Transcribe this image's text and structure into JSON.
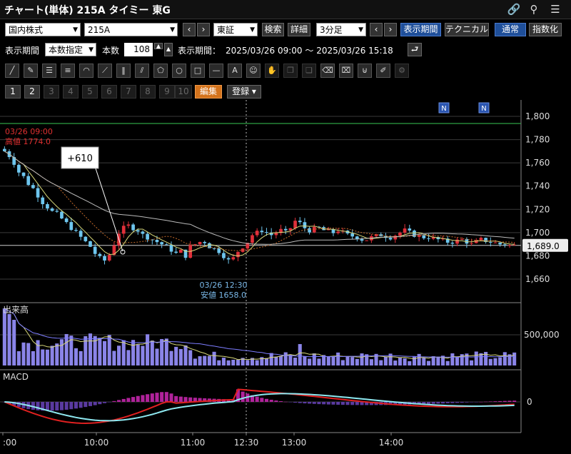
{
  "window": {
    "title": "チャート(単体) 215A タイミー 東G"
  },
  "icons": {
    "link": "link-icon",
    "search": "search-icon",
    "menu": "menu-icon"
  },
  "toolbar1": {
    "market_type": "国内株式",
    "code": "215A",
    "exchange": "東証",
    "search_label": "検索",
    "detail_label": "詳細",
    "interval": "3分足",
    "display_period_label": "表示期間",
    "technical_label": "テクニカル",
    "normal_label": "通常",
    "index_label": "指数化"
  },
  "toolbar2": {
    "period_label": "表示期間",
    "period_mode": "本数指定",
    "count_label": "本数",
    "count_value": "108",
    "range_label": "表示期間：",
    "range_value": "2025/03/26 09:00 〜 2025/03/26 15:18"
  },
  "pages": {
    "numbers": [
      "1",
      "2",
      "3",
      "4",
      "5",
      "6",
      "7",
      "8",
      "9",
      "10"
    ],
    "edit_label": "編集",
    "register_label": "登録"
  },
  "chart_data": {
    "type": "candlestick",
    "price_axis": {
      "ticks": [
        1800,
        1780,
        1760,
        1740,
        1720,
        1700,
        1680,
        1660
      ],
      "current_price": "1,689.0"
    },
    "annotations": {
      "high": {
        "time": "03/26 09:00",
        "label": "高値 1774.0"
      },
      "low": {
        "time": "03/26 12:30",
        "label": "安値 1658.0"
      },
      "marker": "+610",
      "news_badges": [
        "N",
        "N"
      ]
    },
    "volume": {
      "label": "出来高",
      "ticks": [
        "500,000"
      ]
    },
    "macd": {
      "label": "MACD",
      "ticks": [
        "0"
      ]
    },
    "time_axis": {
      "ticks": [
        ":00",
        "10:00",
        "11:00",
        "12:30",
        "13:00",
        "14:00"
      ]
    }
  }
}
